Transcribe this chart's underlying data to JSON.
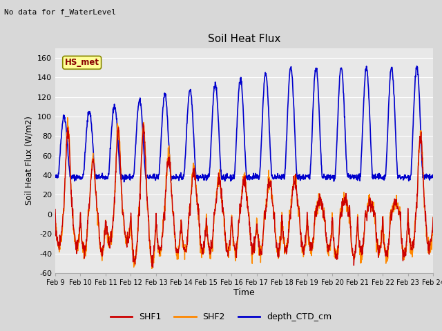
{
  "title": "Soil Heat Flux",
  "top_left_text": "No data for f_WaterLevel",
  "station_label": "HS_met",
  "ylabel": "Soil Heat Flux (W/m2)",
  "xlabel": "Time",
  "ylim": [
    -60,
    170
  ],
  "yticks": [
    -60,
    -40,
    -20,
    0,
    20,
    40,
    60,
    80,
    100,
    120,
    140,
    160
  ],
  "x_tick_labels": [
    "Feb 9",
    "Feb 10",
    "Feb 11",
    "Feb 12",
    "Feb 13",
    "Feb 14",
    "Feb 15",
    "Feb 16",
    "Feb 17",
    "Feb 18",
    "Feb 19",
    "Feb 20",
    "Feb 21",
    "Feb 22",
    "Feb 23",
    "Feb 24"
  ],
  "shf1_color": "#cc0000",
  "shf2_color": "#ff8800",
  "depth_color": "#0000cc",
  "bg_color": "#d8d8d8",
  "plot_bg_color": "#e8e8e8",
  "grid_color": "#ffffff",
  "legend_items": [
    "SHF1",
    "SHF2",
    "depth_CTD_cm"
  ],
  "legend_colors": [
    "#cc0000",
    "#ff8800",
    "#0000cc"
  ]
}
